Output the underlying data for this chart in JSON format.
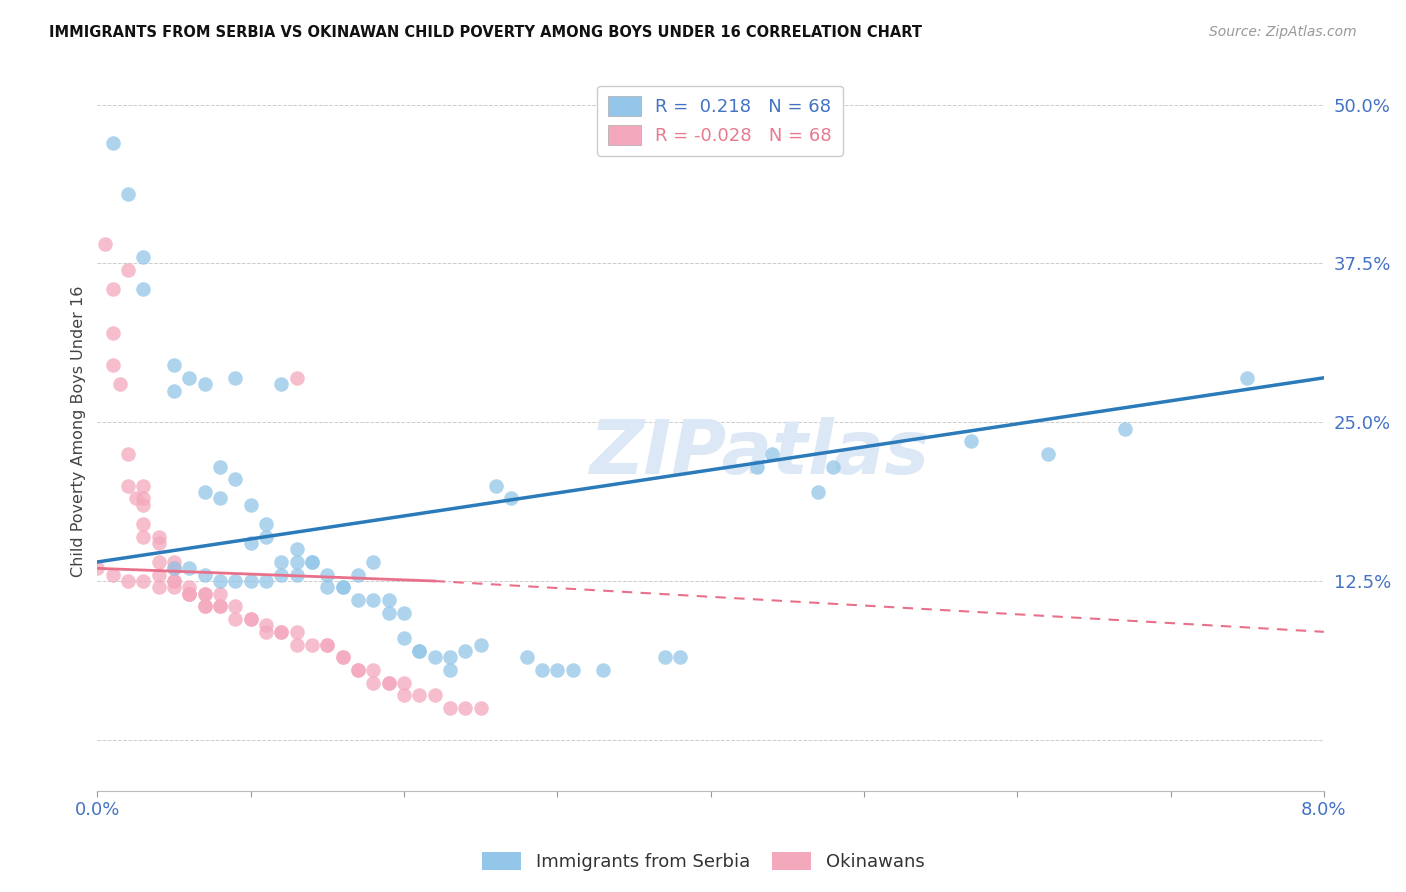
{
  "title": "IMMIGRANTS FROM SERBIA VS OKINAWAN CHILD POVERTY AMONG BOYS UNDER 16 CORRELATION CHART",
  "source": "Source: ZipAtlas.com",
  "ylabel": "Child Poverty Among Boys Under 16",
  "ytick_labels": [
    "",
    "12.5%",
    "25.0%",
    "37.5%",
    "50.0%"
  ],
  "ytick_values": [
    0.0,
    0.125,
    0.25,
    0.375,
    0.5
  ],
  "xmin": 0.0,
  "xmax": 0.08,
  "ymin": -0.04,
  "ymax": 0.525,
  "serbia_color": "#93c6e8",
  "okinawan_color": "#f4a8bc",
  "serbia_line_color": "#2b7bba",
  "okinawan_line_color": "#e8708a",
  "watermark_color": "#dce8f5",
  "serbia_scatter": [
    [
      0.001,
      0.47
    ],
    [
      0.002,
      0.43
    ],
    [
      0.003,
      0.38
    ],
    [
      0.003,
      0.355
    ],
    [
      0.005,
      0.295
    ],
    [
      0.005,
      0.275
    ],
    [
      0.006,
      0.285
    ],
    [
      0.007,
      0.28
    ],
    [
      0.007,
      0.195
    ],
    [
      0.008,
      0.215
    ],
    [
      0.008,
      0.19
    ],
    [
      0.009,
      0.205
    ],
    [
      0.009,
      0.285
    ],
    [
      0.01,
      0.185
    ],
    [
      0.01,
      0.155
    ],
    [
      0.011,
      0.16
    ],
    [
      0.011,
      0.17
    ],
    [
      0.012,
      0.14
    ],
    [
      0.012,
      0.28
    ],
    [
      0.013,
      0.15
    ],
    [
      0.013,
      0.14
    ],
    [
      0.014,
      0.14
    ],
    [
      0.014,
      0.14
    ],
    [
      0.015,
      0.13
    ],
    [
      0.015,
      0.12
    ],
    [
      0.016,
      0.12
    ],
    [
      0.016,
      0.12
    ],
    [
      0.017,
      0.13
    ],
    [
      0.017,
      0.11
    ],
    [
      0.018,
      0.14
    ],
    [
      0.018,
      0.11
    ],
    [
      0.019,
      0.11
    ],
    [
      0.019,
      0.1
    ],
    [
      0.02,
      0.1
    ],
    [
      0.02,
      0.08
    ],
    [
      0.021,
      0.07
    ],
    [
      0.021,
      0.07
    ],
    [
      0.022,
      0.065
    ],
    [
      0.023,
      0.065
    ],
    [
      0.023,
      0.055
    ],
    [
      0.024,
      0.07
    ],
    [
      0.025,
      0.075
    ],
    [
      0.026,
      0.2
    ],
    [
      0.027,
      0.19
    ],
    [
      0.028,
      0.065
    ],
    [
      0.029,
      0.055
    ],
    [
      0.03,
      0.055
    ],
    [
      0.031,
      0.055
    ],
    [
      0.033,
      0.055
    ],
    [
      0.037,
      0.065
    ],
    [
      0.038,
      0.065
    ],
    [
      0.043,
      0.215
    ],
    [
      0.044,
      0.225
    ],
    [
      0.047,
      0.195
    ],
    [
      0.048,
      0.215
    ],
    [
      0.057,
      0.235
    ],
    [
      0.062,
      0.225
    ],
    [
      0.067,
      0.245
    ],
    [
      0.075,
      0.285
    ],
    [
      0.005,
      0.135
    ],
    [
      0.006,
      0.135
    ],
    [
      0.007,
      0.13
    ],
    [
      0.008,
      0.125
    ],
    [
      0.009,
      0.125
    ],
    [
      0.01,
      0.125
    ],
    [
      0.011,
      0.125
    ],
    [
      0.012,
      0.13
    ],
    [
      0.013,
      0.13
    ]
  ],
  "okinawan_scatter": [
    [
      0.0005,
      0.39
    ],
    [
      0.001,
      0.355
    ],
    [
      0.001,
      0.32
    ],
    [
      0.001,
      0.295
    ],
    [
      0.0015,
      0.28
    ],
    [
      0.002,
      0.37
    ],
    [
      0.002,
      0.225
    ],
    [
      0.002,
      0.2
    ],
    [
      0.0025,
      0.19
    ],
    [
      0.003,
      0.2
    ],
    [
      0.003,
      0.19
    ],
    [
      0.003,
      0.185
    ],
    [
      0.003,
      0.17
    ],
    [
      0.003,
      0.16
    ],
    [
      0.004,
      0.16
    ],
    [
      0.004,
      0.155
    ],
    [
      0.004,
      0.14
    ],
    [
      0.004,
      0.13
    ],
    [
      0.005,
      0.14
    ],
    [
      0.005,
      0.135
    ],
    [
      0.005,
      0.125
    ],
    [
      0.005,
      0.125
    ],
    [
      0.006,
      0.12
    ],
    [
      0.006,
      0.115
    ],
    [
      0.006,
      0.115
    ],
    [
      0.007,
      0.115
    ],
    [
      0.007,
      0.105
    ],
    [
      0.007,
      0.105
    ],
    [
      0.008,
      0.105
    ],
    [
      0.008,
      0.105
    ],
    [
      0.009,
      0.105
    ],
    [
      0.009,
      0.095
    ],
    [
      0.01,
      0.095
    ],
    [
      0.01,
      0.095
    ],
    [
      0.011,
      0.09
    ],
    [
      0.011,
      0.085
    ],
    [
      0.012,
      0.085
    ],
    [
      0.012,
      0.085
    ],
    [
      0.013,
      0.085
    ],
    [
      0.013,
      0.075
    ],
    [
      0.013,
      0.285
    ],
    [
      0.014,
      0.075
    ],
    [
      0.015,
      0.075
    ],
    [
      0.015,
      0.075
    ],
    [
      0.016,
      0.065
    ],
    [
      0.016,
      0.065
    ],
    [
      0.017,
      0.055
    ],
    [
      0.017,
      0.055
    ],
    [
      0.018,
      0.055
    ],
    [
      0.018,
      0.045
    ],
    [
      0.019,
      0.045
    ],
    [
      0.019,
      0.045
    ],
    [
      0.02,
      0.045
    ],
    [
      0.02,
      0.035
    ],
    [
      0.021,
      0.035
    ],
    [
      0.022,
      0.035
    ],
    [
      0.023,
      0.025
    ],
    [
      0.024,
      0.025
    ],
    [
      0.025,
      0.025
    ],
    [
      0.0,
      0.135
    ],
    [
      0.001,
      0.13
    ],
    [
      0.002,
      0.125
    ],
    [
      0.003,
      0.125
    ],
    [
      0.004,
      0.12
    ],
    [
      0.005,
      0.12
    ],
    [
      0.006,
      0.115
    ],
    [
      0.007,
      0.115
    ],
    [
      0.008,
      0.115
    ]
  ],
  "serbia_line": {
    "x0": 0.0,
    "y0": 0.14,
    "x1": 0.08,
    "y1": 0.285
  },
  "okinawan_line_solid": {
    "x0": 0.0,
    "y0": 0.135,
    "x1": 0.022,
    "y1": 0.125
  },
  "okinawan_line_dashed": {
    "x0": 0.022,
    "y0": 0.125,
    "x1": 0.08,
    "y1": 0.085
  }
}
